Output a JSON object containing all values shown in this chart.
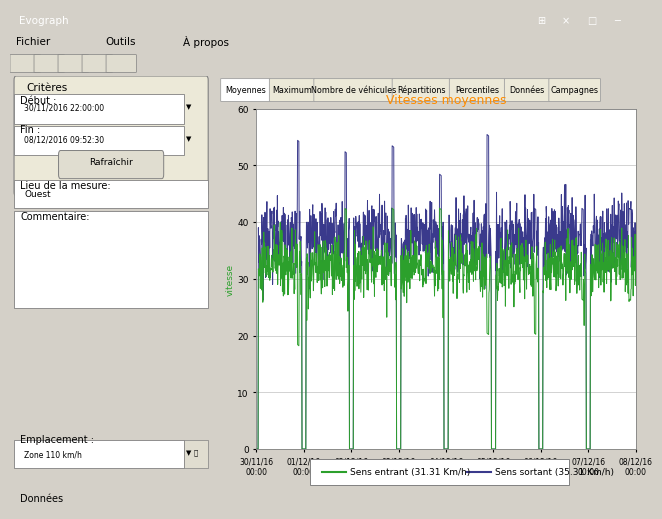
{
  "title": "Vitesses moyennes",
  "title_color": "#FF8C00",
  "ylabel": "vitesse",
  "ylim": [
    0,
    60
  ],
  "yticks": [
    0,
    10,
    20,
    30,
    40,
    50,
    60
  ],
  "xtick_labels": [
    "30/11/16\n00:00",
    "01/12/16\n00:00",
    "02/12/16\n00:00",
    "03/12/16\n00:00",
    "04/12/16\n00:00",
    "05/12/16\n00:00",
    "06/12/16\n00:00",
    "07/12/16\n00:00",
    "08/12/16\n00:00"
  ],
  "color_entrant": "#2ca02c",
  "color_sortant": "#3a3a8c",
  "legend_entrant": "Sens entrant (31.31 Km/h)",
  "legend_sortant": "Sens sortant (35.31 Km/h)",
  "bg_color": "#d4d0c8",
  "plot_bg_color": "#ffffff",
  "panel_bg": "#ece9d8",
  "grid_color": "#c0c0c0",
  "n_points": 1200,
  "window_title": "Evograph",
  "menu_items": [
    "Fichier",
    "Outils",
    "À propos"
  ],
  "tab_items": [
    "Moyennes",
    "Maximum",
    "Nombre de véhicules",
    "Répartitions",
    "Percentiles",
    "Données",
    "Campagnes"
  ],
  "sidebar_labels": [
    "Critères",
    "Début :",
    "30/11/2016 22:00:00",
    "Fin :",
    "08/12/2016 09:52:30",
    "Rafraîchir",
    "Lieu de la mesure:",
    "Ouest",
    "Commentaire:",
    "Emplacement :",
    "Zone 110 km/h"
  ],
  "bottom_label": "Données"
}
